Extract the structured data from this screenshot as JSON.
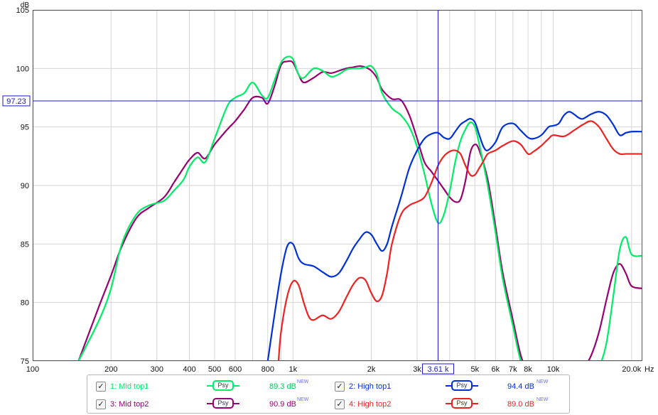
{
  "chart_data": {
    "type": "line",
    "y_unit": "dB",
    "x_unit": "Hz",
    "x_scale": "log",
    "xlim": [
      100,
      22000
    ],
    "ylim": [
      75,
      105
    ],
    "grid": true,
    "x_ticks": [
      {
        "v": 100,
        "t": "100"
      },
      {
        "v": 200,
        "t": "200"
      },
      {
        "v": 300,
        "t": "300"
      },
      {
        "v": 400,
        "t": "400"
      },
      {
        "v": 500,
        "t": "500"
      },
      {
        "v": 600,
        "t": "600"
      },
      {
        "v": 800,
        "t": "800"
      },
      {
        "v": 1000,
        "t": "1k"
      },
      {
        "v": 2000,
        "t": "2k"
      },
      {
        "v": 3000,
        "t": "3k"
      },
      {
        "v": 5000,
        "t": "5k"
      },
      {
        "v": 6000,
        "t": "6k"
      },
      {
        "v": 7000,
        "t": "7k"
      },
      {
        "v": 8000,
        "t": "8k"
      },
      {
        "v": 10000,
        "t": "10k"
      },
      {
        "v": 20000,
        "t": "20.0k"
      }
    ],
    "x_minor": [
      700,
      900,
      4000,
      9000
    ],
    "y_ticks": [
      75,
      80,
      85,
      90,
      95,
      100,
      105
    ],
    "cursor": {
      "x": 3610,
      "x_label": "3.61 k",
      "y": 97.23,
      "y_label": "97.23"
    },
    "series": [
      {
        "name": "1: Mid top1",
        "color": "#00ee66",
        "x": [
          150,
          180,
          200,
          220,
          250,
          280,
          320,
          350,
          380,
          400,
          430,
          460,
          500,
          560,
          600,
          650,
          700,
          760,
          800,
          850,
          900,
          950,
          1000,
          1050,
          1100,
          1200,
          1300,
          1400,
          1500,
          1600,
          1700,
          1800,
          1900,
          2000,
          2100,
          2200,
          2400,
          2600,
          2800,
          3000,
          3200,
          3400,
          3610,
          3800,
          4000,
          4200,
          4400,
          4600,
          4800,
          5000,
          5200,
          5600,
          6000,
          6400,
          7000,
          7500,
          8000,
          8400,
          9000,
          10000,
          11000,
          12000,
          13000,
          14000,
          15000,
          16000,
          17000,
          18000,
          19000,
          20000,
          22000
        ],
        "y": [
          75.0,
          78.5,
          81.2,
          85.0,
          87.5,
          88.3,
          88.7,
          89.6,
          90.5,
          91.6,
          92.4,
          92.0,
          94.0,
          96.8,
          97.5,
          97.9,
          98.8,
          97.7,
          97.5,
          99.0,
          100.5,
          101.0,
          100.8,
          99.5,
          99.2,
          100.0,
          99.8,
          99.3,
          99.5,
          99.9,
          100.0,
          100.0,
          100.1,
          100.2,
          99.5,
          97.9,
          96.6,
          96.0,
          95.0,
          93.3,
          91.0,
          88.5,
          86.8,
          87.5,
          89.5,
          92.0,
          93.8,
          94.8,
          95.4,
          95.0,
          93.5,
          90.0,
          86.0,
          82.0,
          78.0,
          75.0,
          73.8,
          73.5,
          73.5,
          73.5,
          73.5,
          73.5,
          73.5,
          73.8,
          74.5,
          76.5,
          80.5,
          84.5,
          85.6,
          84.1,
          84.0
        ]
      },
      {
        "name": "2: High top1",
        "color": "#0030d8",
        "x": [
          800,
          850,
          900,
          950,
          1000,
          1050,
          1100,
          1200,
          1300,
          1400,
          1500,
          1600,
          1700,
          1800,
          1900,
          2000,
          2100,
          2200,
          2300,
          2400,
          2600,
          2800,
          3000,
          3200,
          3400,
          3610,
          3800,
          4000,
          4200,
          4400,
          4600,
          4800,
          5000,
          5200,
          5400,
          5600,
          6000,
          6400,
          7000,
          7500,
          8000,
          8400,
          9000,
          9600,
          10000,
          10500,
          11000,
          11500,
          12000,
          12500,
          13000,
          14000,
          15000,
          16000,
          17000,
          18000,
          19000,
          20000,
          22000
        ],
        "y": [
          75.0,
          79.0,
          82.5,
          84.8,
          85.0,
          83.8,
          83.3,
          83.1,
          82.6,
          82.2,
          82.5,
          83.5,
          84.6,
          85.4,
          86.0,
          85.8,
          85.0,
          84.4,
          85.0,
          86.5,
          89.0,
          91.5,
          93.0,
          94.0,
          94.4,
          94.5,
          94.1,
          94.0,
          94.6,
          95.2,
          95.5,
          95.7,
          95.4,
          94.3,
          93.3,
          93.0,
          93.7,
          95.0,
          95.3,
          94.7,
          94.1,
          94.0,
          94.3,
          95.0,
          95.1,
          95.3,
          96.0,
          96.3,
          96.1,
          95.8,
          95.7,
          96.1,
          96.3,
          96.0,
          95.2,
          94.3,
          94.5,
          94.6,
          94.6
        ]
      },
      {
        "name": "3: Mid top2",
        "color": "#990070",
        "x": [
          150,
          180,
          200,
          220,
          250,
          280,
          320,
          350,
          380,
          400,
          430,
          460,
          500,
          560,
          600,
          650,
          700,
          760,
          800,
          850,
          900,
          950,
          1000,
          1050,
          1100,
          1200,
          1300,
          1400,
          1500,
          1600,
          1700,
          1800,
          1900,
          2000,
          2100,
          2200,
          2400,
          2600,
          2800,
          3000,
          3200,
          3400,
          3610,
          3800,
          4000,
          4200,
          4400,
          4600,
          4800,
          5000,
          5200,
          5600,
          6000,
          6400,
          7000,
          7500,
          8000,
          8400,
          9000,
          10000,
          11000,
          12000,
          13000,
          14000,
          15000,
          16000,
          17000,
          18000,
          19000,
          20000,
          22000
        ],
        "y": [
          75.0,
          79.7,
          82.3,
          84.8,
          87.2,
          88.1,
          89.0,
          90.3,
          91.5,
          92.2,
          92.8,
          92.3,
          93.5,
          94.8,
          95.5,
          96.5,
          97.5,
          97.5,
          97.0,
          98.5,
          100.3,
          100.6,
          100.5,
          99.5,
          98.8,
          99.2,
          99.7,
          99.6,
          99.8,
          100.0,
          100.1,
          100.2,
          100.1,
          99.8,
          99.2,
          98.2,
          97.4,
          97.3,
          96.0,
          94.0,
          92.0,
          91.2,
          90.4,
          89.7,
          89.0,
          88.6,
          88.8,
          90.4,
          92.8,
          93.5,
          93.0,
          90.5,
          86.5,
          82.5,
          78.5,
          75.5,
          74.0,
          73.5,
          73.5,
          73.5,
          73.6,
          73.8,
          74.3,
          75.5,
          77.5,
          80.2,
          82.5,
          83.3,
          82.5,
          81.4,
          81.2
        ]
      },
      {
        "name": "4: High top2",
        "color": "#ee2222",
        "x": [
          880,
          900,
          950,
          1000,
          1050,
          1100,
          1150,
          1200,
          1300,
          1400,
          1500,
          1600,
          1700,
          1800,
          1900,
          2000,
          2100,
          2200,
          2300,
          2400,
          2600,
          2800,
          3000,
          3200,
          3400,
          3610,
          3800,
          4000,
          4200,
          4400,
          4600,
          4800,
          5000,
          5200,
          5400,
          5600,
          6000,
          6400,
          7000,
          7500,
          8000,
          8400,
          9000,
          9600,
          10000,
          11000,
          12000,
          13000,
          14000,
          15000,
          16000,
          17000,
          18000,
          19000,
          20000,
          22000
        ],
        "y": [
          75.0,
          77.5,
          80.5,
          81.8,
          81.5,
          80.0,
          78.8,
          78.5,
          78.9,
          78.6,
          79.2,
          80.4,
          81.5,
          82.1,
          81.9,
          80.8,
          80.1,
          80.6,
          82.5,
          85.0,
          87.5,
          88.3,
          88.6,
          89.0,
          90.2,
          91.7,
          92.5,
          92.9,
          93.0,
          92.7,
          91.7,
          90.9,
          90.9,
          91.5,
          92.1,
          92.7,
          93.0,
          93.4,
          93.8,
          93.5,
          92.7,
          92.9,
          93.4,
          94.0,
          94.3,
          94.2,
          94.7,
          95.2,
          95.5,
          95.0,
          94.0,
          93.1,
          92.7,
          92.7,
          92.7,
          92.7
        ]
      }
    ]
  },
  "legend": {
    "items": [
      {
        "check": "✓",
        "label": "1: Mid top1",
        "mode": "Psy",
        "value": "89.3 dB",
        "new": "NEW",
        "color": "#00ee66"
      },
      {
        "check": "✓",
        "label": "2: High top1",
        "mode": "Psy",
        "value": "94.4 dB",
        "new": "NEW",
        "color": "#0030d8"
      },
      {
        "check": "✓",
        "label": "3: Mid top2",
        "mode": "Psy",
        "value": "90.9 dB",
        "new": "NEW",
        "color": "#990070"
      },
      {
        "check": "✓",
        "label": "4: High top2",
        "mode": "Psy",
        "value": "89.0 dB",
        "new": "NEW",
        "color": "#ee2222"
      }
    ]
  }
}
